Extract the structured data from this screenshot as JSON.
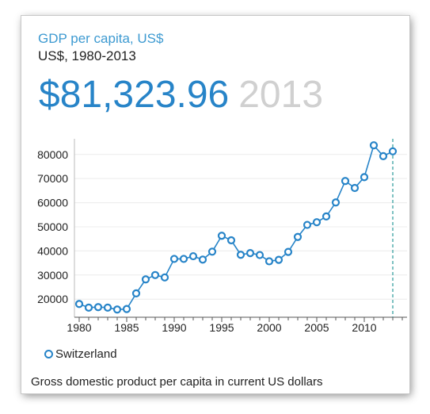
{
  "card": {
    "title": "GDP per capita, US$",
    "subtitle": "US$, 1980-2013",
    "headline_value": "$81,323.96",
    "headline_year": "2013",
    "footnote": "Gross domestic product per capita in current US dollars"
  },
  "colors": {
    "accent": "#2784c8",
    "title": "#3d9ad1",
    "muted_year": "#d0d0d0",
    "grid": "#ececec"
  },
  "chart_data": {
    "type": "line",
    "title": "GDP per capita, US$",
    "subtitle": "US$, 1980-2013",
    "xlabel": "",
    "ylabel": "",
    "xlim": [
      1979.5,
      2014.5
    ],
    "ylim": [
      12500,
      86500
    ],
    "x_ticks": [
      1980,
      1985,
      1990,
      1995,
      2000,
      2005,
      2010
    ],
    "y_ticks": [
      20000,
      30000,
      40000,
      50000,
      60000,
      70000,
      80000
    ],
    "grid": true,
    "legend": "bottom-left",
    "highlight_x": 2013,
    "series": [
      {
        "name": "Switzerland",
        "color": "#2784c8",
        "x": [
          1980,
          1981,
          1982,
          1983,
          1984,
          1985,
          1986,
          1987,
          1988,
          1989,
          1990,
          1991,
          1992,
          1993,
          1994,
          1995,
          1996,
          1997,
          1998,
          1999,
          2000,
          2001,
          2002,
          2003,
          2004,
          2005,
          2006,
          2007,
          2008,
          2009,
          2010,
          2011,
          2012,
          2013
        ],
        "y": [
          18000,
          16500,
          16700,
          16500,
          15700,
          15900,
          22400,
          28200,
          30000,
          29000,
          36700,
          36700,
          37800,
          36400,
          39700,
          46300,
          44400,
          38400,
          39100,
          38300,
          35700,
          36300,
          39600,
          45800,
          50800,
          51900,
          54300,
          60100,
          69000,
          66100,
          70600,
          83800,
          79300,
          81300
        ]
      }
    ]
  }
}
